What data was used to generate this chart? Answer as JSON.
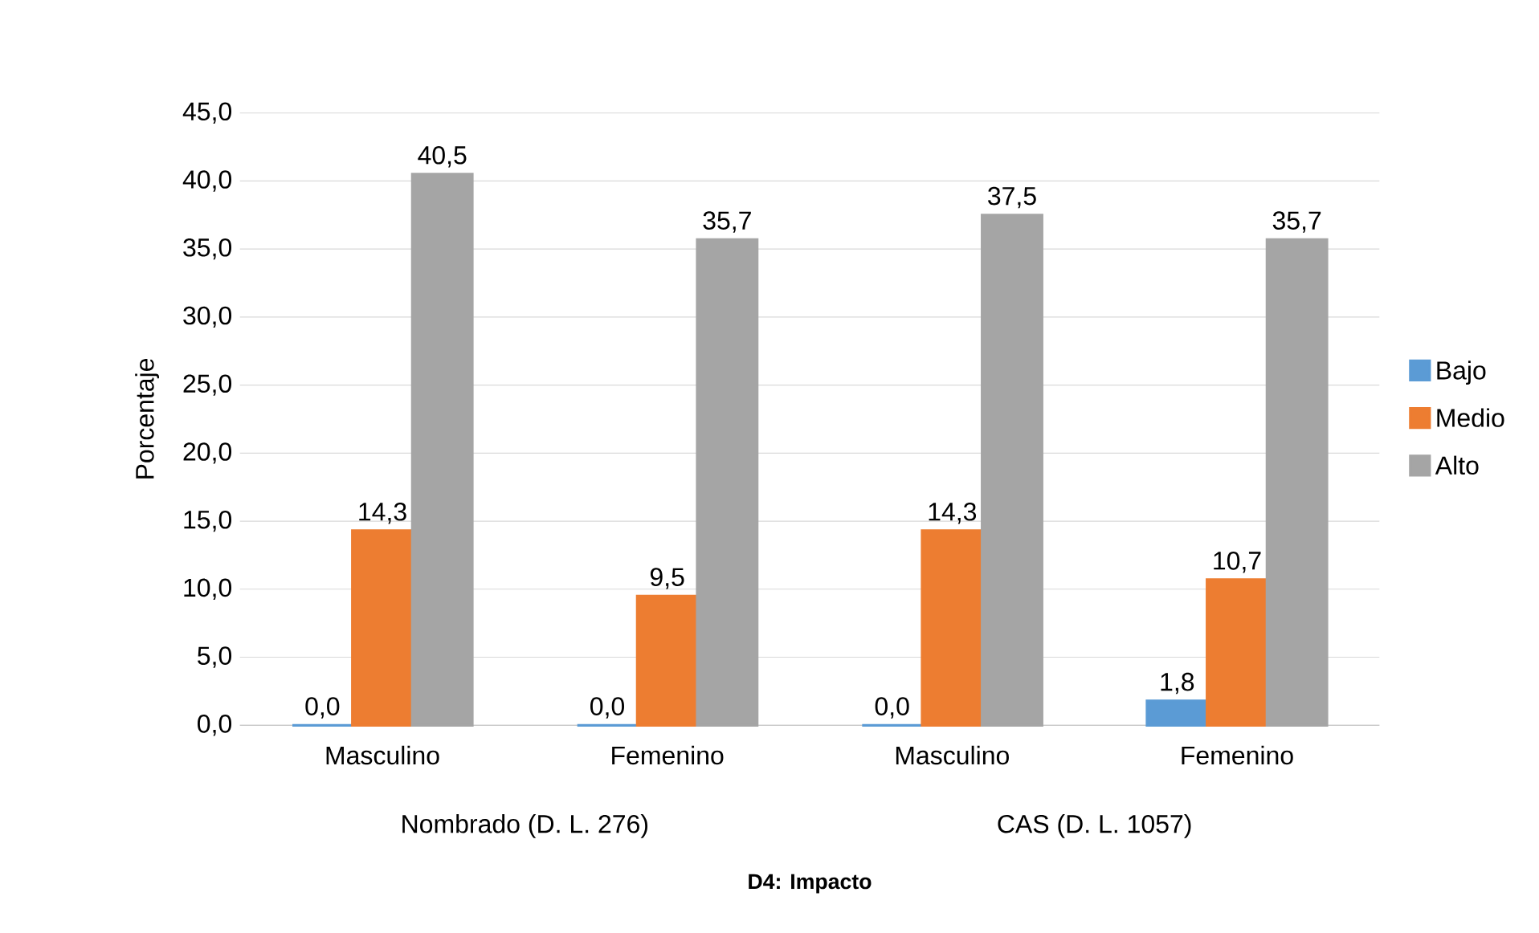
{
  "chart_data": {
    "type": "bar",
    "title": "D4: Impacto",
    "ylabel": "Porcentaje",
    "categories": [
      "Masculino",
      "Femenino",
      "Masculino",
      "Femenino"
    ],
    "annotations": [
      "Nombrado (D. L. 276)",
      "CAS (D. L. 1057)"
    ],
    "series": [
      {
        "name": "Bajo",
        "color": "#5b9bd5",
        "values": [
          0.0,
          0.0,
          0.0,
          1.8
        ],
        "value_labels": [
          "0,0",
          "0,0",
          "0,0",
          "1,8"
        ]
      },
      {
        "name": "Medio",
        "color": "#ed7d31",
        "values": [
          14.3,
          9.5,
          14.3,
          10.7
        ],
        "value_labels": [
          "14,3",
          "9,5",
          "14,3",
          "10,7"
        ]
      },
      {
        "name": "Alto",
        "color": "#a5a5a5",
        "values": [
          40.5,
          35.7,
          37.5,
          35.7
        ],
        "value_labels": [
          "40,5",
          "35,7",
          "37,5",
          "35,7"
        ]
      }
    ],
    "ylim": [
      0,
      45
    ],
    "yticks": [
      {
        "value": 0,
        "label": "0,0"
      },
      {
        "value": 5,
        "label": "5,0"
      },
      {
        "value": 10,
        "label": "10,0"
      },
      {
        "value": 15,
        "label": "15,0"
      },
      {
        "value": 20,
        "label": "20,0"
      },
      {
        "value": 25,
        "label": "25,0"
      },
      {
        "value": 30,
        "label": "30,0"
      },
      {
        "value": 35,
        "label": "35,0"
      },
      {
        "value": 40,
        "label": "40,0"
      },
      {
        "value": 45,
        "label": "45,0"
      }
    ],
    "grid": "y",
    "legend": "right"
  }
}
